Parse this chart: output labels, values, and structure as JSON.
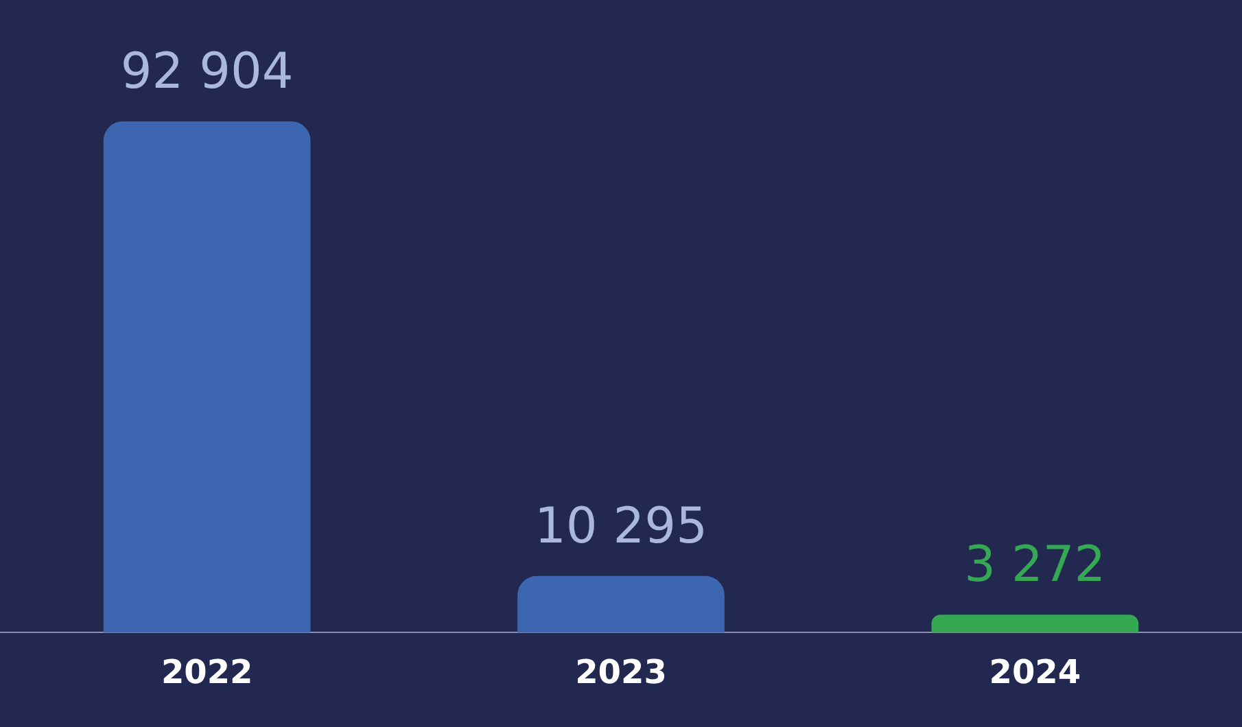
{
  "chart_data": {
    "type": "bar",
    "categories": [
      "2022",
      "2023",
      "2024"
    ],
    "values": [
      92904,
      10295,
      3272
    ],
    "colors": [
      "#3d66b0",
      "#3d66b0",
      "#34a853"
    ],
    "data_labels": true,
    "value_labels": [
      "92 904",
      "10 295",
      "3 272"
    ]
  }
}
